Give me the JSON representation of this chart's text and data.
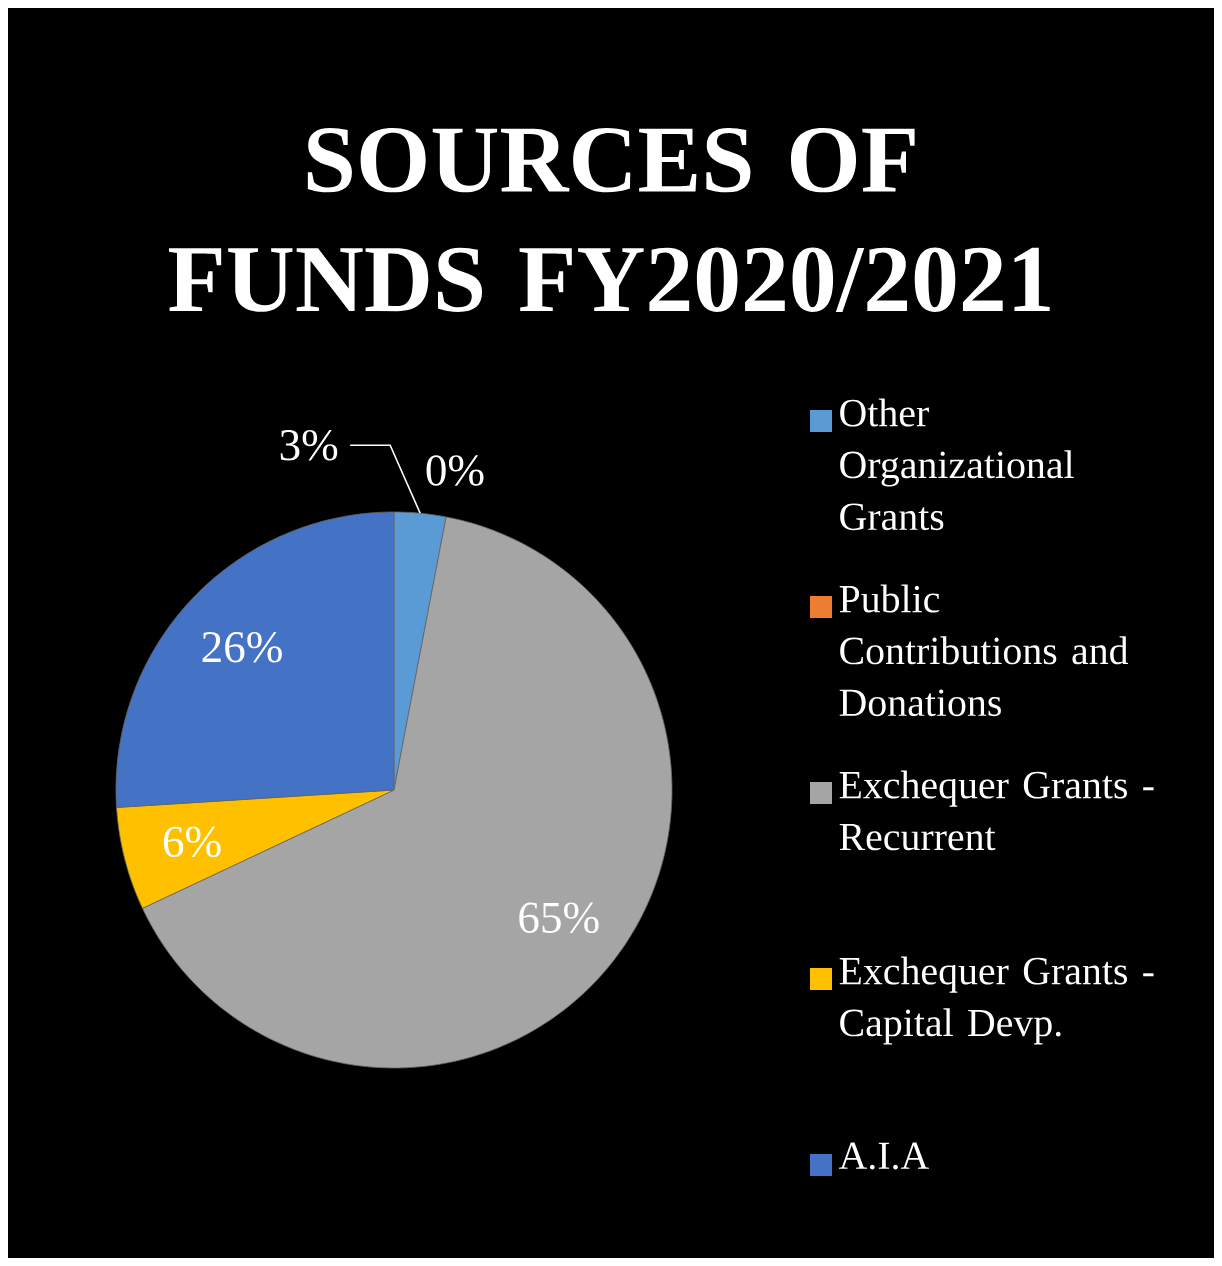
{
  "chart_data": {
    "type": "pie",
    "title": "SOURCES OF FUNDS FY2020/2021",
    "categories": [
      "Other Organizational Grants",
      "Public Contributions and Donations",
      "Exchequer Grants - Recurrent",
      "Exchequer Grants - Capital Devp.",
      "A.I.A"
    ],
    "values": [
      3,
      0,
      65,
      6,
      26
    ],
    "value_labels": [
      "3%",
      "0%",
      "65%",
      "6%",
      "26%"
    ],
    "colors": [
      "#5b9bd5",
      "#ed7d31",
      "#a5a5a5",
      "#ffc000",
      "#4472c4"
    ],
    "legend": "right"
  }
}
